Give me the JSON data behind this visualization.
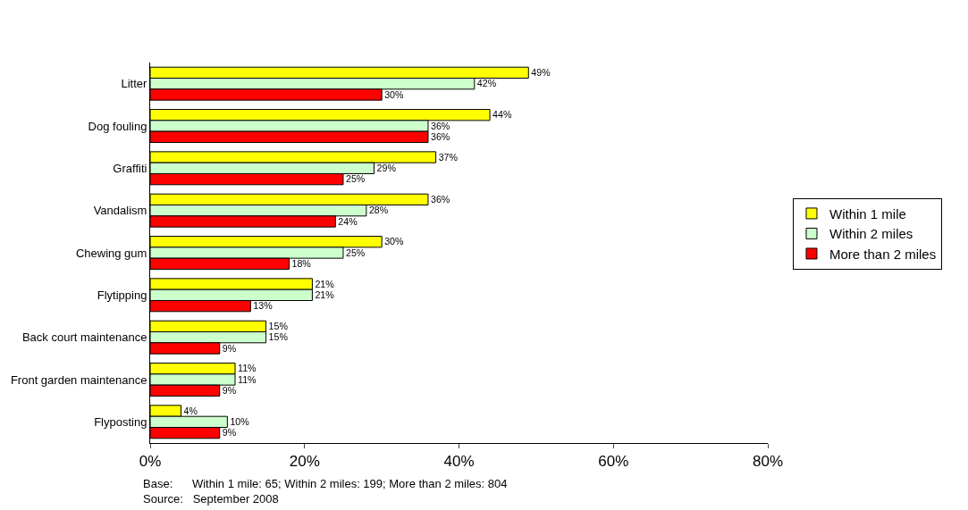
{
  "chart_data": {
    "type": "bar",
    "orientation": "horizontal",
    "categories": [
      "Litter",
      "Dog fouling",
      "Graffiti",
      "Vandalism",
      "Chewing gum",
      "Flytipping",
      "Back court maintenance",
      "Front garden maintenance",
      "Flyposting"
    ],
    "series": [
      {
        "name": "Within 1 mile",
        "color": "#ffff00",
        "values": [
          49,
          44,
          37,
          36,
          30,
          21,
          15,
          11,
          4
        ],
        "value_labels": [
          "49%",
          "44%",
          "37%",
          "36%",
          "30%",
          "21%",
          "15%",
          "11%",
          "4%"
        ]
      },
      {
        "name": "Within 2 miles",
        "color": "#ccffcc",
        "values": [
          42,
          36,
          29,
          28,
          25,
          21,
          15,
          11,
          10
        ],
        "value_labels": [
          "42%",
          "36%",
          "29%",
          "28%",
          "25%",
          "21%",
          "15%",
          "11%",
          "10%"
        ]
      },
      {
        "name": "More than 2 miles",
        "color": "#ff0000",
        "values": [
          30,
          36,
          25,
          24,
          18,
          13,
          9,
          9,
          9
        ],
        "value_labels": [
          "30%",
          "36%",
          "25%",
          "24%",
          "18%",
          "13%",
          "9%",
          "9%",
          "9%"
        ]
      }
    ],
    "xlim": [
      0,
      80
    ],
    "xticks": [
      {
        "value": 0,
        "label": "0%"
      },
      {
        "value": 20,
        "label": "20%"
      },
      {
        "value": 40,
        "label": "40%"
      },
      {
        "value": 60,
        "label": "60%"
      },
      {
        "value": 80,
        "label": "80%"
      }
    ],
    "grid": false,
    "legend": "right",
    "annotations": [
      "Base:      Within 1 mile: 65; Within 2 miles: 199; More than 2 miles: 804",
      "Source:   September 2008"
    ]
  }
}
